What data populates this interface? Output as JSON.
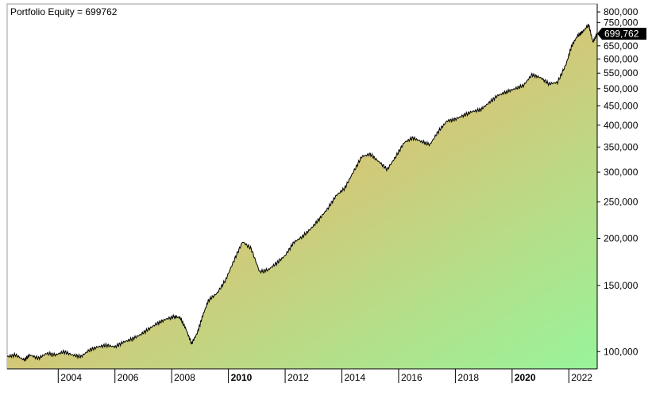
{
  "chart_data": {
    "type": "area",
    "title": "Portfolio Equity = 699762",
    "last_value_label": "699,762",
    "y_scale": "log",
    "ylim": [
      90000,
      840000
    ],
    "xlim": [
      2002.2,
      2023.0
    ],
    "y_ticks": [
      {
        "value": 100000,
        "label": "100,000"
      },
      {
        "value": 150000,
        "label": "150,000"
      },
      {
        "value": 200000,
        "label": "200,000"
      },
      {
        "value": 250000,
        "label": "250,000"
      },
      {
        "value": 300000,
        "label": "300,000"
      },
      {
        "value": 350000,
        "label": "350,000"
      },
      {
        "value": 400000,
        "label": "400,000"
      },
      {
        "value": 450000,
        "label": "450,000"
      },
      {
        "value": 500000,
        "label": "500,000"
      },
      {
        "value": 550000,
        "label": "550,000"
      },
      {
        "value": 600000,
        "label": "600,000"
      },
      {
        "value": 650000,
        "label": "650,000"
      },
      {
        "value": 700000,
        "label": "700,000"
      },
      {
        "value": 750000,
        "label": "750,000"
      },
      {
        "value": 800000,
        "label": "800,000"
      }
    ],
    "x_ticks": [
      {
        "value": 2004,
        "label": "2004",
        "bold": false
      },
      {
        "value": 2006,
        "label": "2006",
        "bold": false
      },
      {
        "value": 2008,
        "label": "2008",
        "bold": false
      },
      {
        "value": 2010,
        "label": "2010",
        "bold": true
      },
      {
        "value": 2012,
        "label": "2012",
        "bold": false
      },
      {
        "value": 2014,
        "label": "2014",
        "bold": false
      },
      {
        "value": 2016,
        "label": "2016",
        "bold": false
      },
      {
        "value": 2018,
        "label": "2018",
        "bold": false
      },
      {
        "value": 2020,
        "label": "2020",
        "bold": true
      },
      {
        "value": 2022,
        "label": "2022",
        "bold": false
      }
    ],
    "series": [
      {
        "x": [
          2002.2,
          2002.5,
          2002.8,
          2003.0,
          2003.3,
          2003.6,
          2003.9,
          2004.2,
          2004.5,
          2004.8,
          2005.1,
          2005.4,
          2005.7,
          2006.0,
          2006.3,
          2006.6,
          2006.9,
          2007.2,
          2007.5,
          2007.8,
          2008.1,
          2008.3,
          2008.5,
          2008.7,
          2008.9,
          2009.1,
          2009.3,
          2009.6,
          2009.9,
          2010.2,
          2010.5,
          2010.8,
          2011.1,
          2011.4,
          2011.7,
          2012.0,
          2012.3,
          2012.6,
          2012.9,
          2013.2,
          2013.5,
          2013.8,
          2014.1,
          2014.4,
          2014.7,
          2015.0,
          2015.3,
          2015.6,
          2015.9,
          2016.2,
          2016.5,
          2016.8,
          2017.1,
          2017.4,
          2017.7,
          2018.0,
          2018.3,
          2018.6,
          2018.9,
          2019.2,
          2019.5,
          2019.8,
          2020.1,
          2020.4,
          2020.7,
          2021.0,
          2021.3,
          2021.6,
          2021.9,
          2022.1,
          2022.3,
          2022.5,
          2022.7,
          2022.85,
          2023.0
        ],
        "values": [
          97000,
          98000,
          95000,
          98000,
          96000,
          99000,
          98000,
          100000,
          98000,
          97000,
          101000,
          103000,
          104000,
          103000,
          106000,
          108000,
          111000,
          115000,
          119000,
          122000,
          124000,
          123000,
          115000,
          105000,
          112000,
          125000,
          137000,
          143000,
          155000,
          175000,
          196000,
          188000,
          163000,
          165000,
          172000,
          180000,
          195000,
          202000,
          212000,
          225000,
          240000,
          260000,
          272000,
          300000,
          330000,
          335000,
          320000,
          305000,
          330000,
          360000,
          370000,
          362000,
          355000,
          385000,
          410000,
          415000,
          425000,
          435000,
          440000,
          460000,
          480000,
          490000,
          500000,
          510000,
          545000,
          535000,
          515000,
          520000,
          580000,
          650000,
          690000,
          710000,
          740000,
          665000,
          700000
        ]
      }
    ]
  }
}
